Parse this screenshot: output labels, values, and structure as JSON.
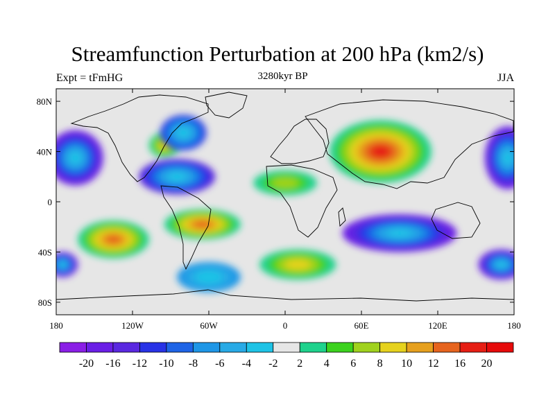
{
  "title": "Streamfunction Perturbation at 200 hPa (km2/s)",
  "subtitle_left": "Expt = tFmHG",
  "subtitle_center": "3280kyr BP",
  "subtitle_right": "JJA",
  "lat_ticks": [
    {
      "label": "80N",
      "value": 80
    },
    {
      "label": "40N",
      "value": 40
    },
    {
      "label": "0",
      "value": 0
    },
    {
      "label": "40S",
      "value": -40
    },
    {
      "label": "80S",
      "value": -80
    }
  ],
  "lon_ticks": [
    {
      "label": "180",
      "value": -180
    },
    {
      "label": "120W",
      "value": -120
    },
    {
      "label": "60W",
      "value": -60
    },
    {
      "label": "0",
      "value": 0
    },
    {
      "label": "60E",
      "value": 60
    },
    {
      "label": "120E",
      "value": 120
    },
    {
      "label": "180",
      "value": 180
    }
  ],
  "colorbar": {
    "labels": [
      "-20",
      "-16",
      "-12",
      "-10",
      "-8",
      "-6",
      "-4",
      "-2",
      "2",
      "4",
      "6",
      "8",
      "10",
      "12",
      "16",
      "20"
    ],
    "colors": [
      "#8a1ee6",
      "#6a1ee6",
      "#5a28e0",
      "#2832e6",
      "#1e64e6",
      "#1e96e6",
      "#28aae6",
      "#1ec3e6",
      "#e6e6e6",
      "#1ed28c",
      "#3cd21e",
      "#a0d21e",
      "#e6d21e",
      "#e6a01e",
      "#e6641e",
      "#e61e14",
      "#e60a0a"
    ]
  },
  "anomalies": [
    {
      "lon": -165,
      "lat": 35,
      "rx": 22,
      "ry": 22,
      "level": -18
    },
    {
      "lon": -95,
      "lat": 45,
      "rx": 12,
      "ry": 10,
      "level": 8
    },
    {
      "lon": -80,
      "lat": 55,
      "rx": 18,
      "ry": 14,
      "level": -10
    },
    {
      "lon": -85,
      "lat": 20,
      "rx": 30,
      "ry": 14,
      "level": -12
    },
    {
      "lon": 75,
      "lat": 40,
      "rx": 40,
      "ry": 25,
      "level": 16
    },
    {
      "lon": 175,
      "lat": 35,
      "rx": 18,
      "ry": 25,
      "level": -16
    },
    {
      "lon": 90,
      "lat": -25,
      "rx": 45,
      "ry": 15,
      "level": -18
    },
    {
      "lon": -135,
      "lat": -30,
      "rx": 28,
      "ry": 15,
      "level": 14
    },
    {
      "lon": -65,
      "lat": -18,
      "rx": 30,
      "ry": 12,
      "level": 12
    },
    {
      "lon": 10,
      "lat": -50,
      "rx": 30,
      "ry": 12,
      "level": 8
    },
    {
      "lon": 170,
      "lat": -50,
      "rx": 18,
      "ry": 12,
      "level": -16
    },
    {
      "lon": -175,
      "lat": -50,
      "rx": 12,
      "ry": 10,
      "level": -16
    },
    {
      "lon": -60,
      "lat": -60,
      "rx": 25,
      "ry": 12,
      "level": -6
    },
    {
      "lon": 0,
      "lat": 15,
      "rx": 25,
      "ry": 10,
      "level": 6
    }
  ],
  "colors": {
    "background": "#e6e6e6",
    "coast": "#000000"
  }
}
